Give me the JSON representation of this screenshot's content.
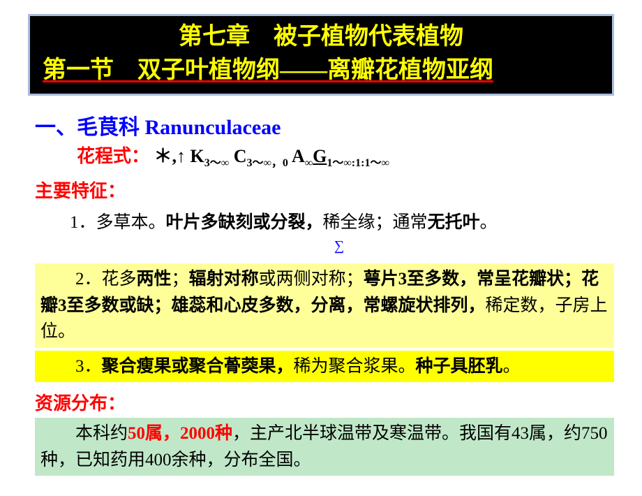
{
  "colors": {
    "header_bg": "#000000",
    "header_border": "#aabbdd",
    "header_text": "#ffff00",
    "underline": "#ff0000",
    "body_bg": "#ffffff",
    "title_color": "#0000ff",
    "formula_label": "#ff0000",
    "formula_text": "#000000",
    "label_red": "#ff0000",
    "item2_bg": "#ffff99",
    "item3_bg": "#ffff00",
    "resource_bg": "#c0e8c8",
    "marker_color": "#0000ff",
    "red_bold": "#ff0000"
  },
  "typography": {
    "header_pt": 34,
    "section_pt": 30,
    "body_pt": 25,
    "sub_pt": 16
  },
  "header": {
    "line1": "第七章　被子植物代表植物",
    "line2": "第一节　双子叶植物纲——离瓣花植物亚纲"
  },
  "section": {
    "title": "一、毛茛科  Ranunculaceae",
    "formula_label": "花程式：",
    "formula_asterisk": "＊",
    "formula_arrow": ",↑ ",
    "formula_K": "K",
    "formula_K_sub": "3～∞",
    "formula_C": " C",
    "formula_C_sub": "3～∞，0",
    "formula_A": " A",
    "formula_A_sub": "∞",
    "formula_G": "G",
    "formula_G_sub": "1～∞:1:1～∞"
  },
  "main_features": {
    "label": "主要特征：",
    "item1_num": "1．",
    "item1_a": "多草本。",
    "item1_b": "叶片多缺刻或分裂，",
    "item1_c": "稀全缘；通常",
    "item1_d": "无托叶",
    "item1_e": "。",
    "marker": "∑",
    "item2_num": "2．",
    "item2_a": "花多",
    "item2_b": "两性",
    "item2_c": "；",
    "item2_d": "辐射对称",
    "item2_e": "或两侧对称；",
    "item2_f": "萼片3至多数，常呈花瓣状；花瓣3至多数或缺；雄蕊和心皮多数，分离，常螺旋状排列，",
    "item2_g": "稀定数，子房上位。",
    "item3_num": "3．",
    "item3_a": "聚合瘦果或聚合蓇葖果，",
    "item3_b": "稀为聚合浆果。",
    "item3_c": "种子具胚乳",
    "item3_d": "。"
  },
  "resources": {
    "label": "资源分布：",
    "prefix": "本科约",
    "count1": "50属，2000种",
    "mid": "，主产北半球温带及寒温带。我国有43属，约750种，已知药用400余种，分布全国。"
  }
}
